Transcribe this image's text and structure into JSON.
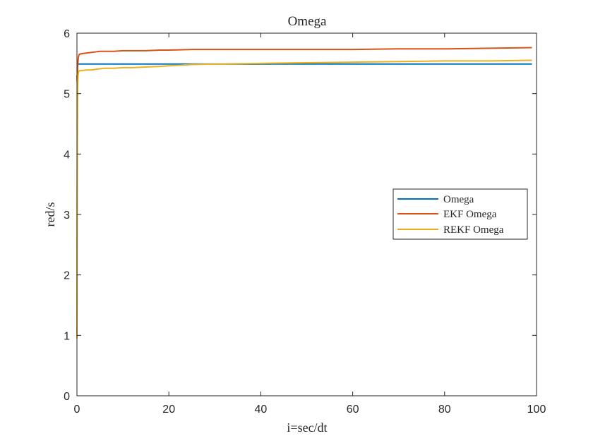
{
  "chart_data": {
    "type": "line",
    "title": "Omega",
    "xlabel": "i=sec/dt",
    "ylabel": "red/s",
    "xlim": [
      0,
      100
    ],
    "ylim": [
      0,
      6
    ],
    "xticks": [
      "0",
      "20",
      "40",
      "60",
      "80",
      "100"
    ],
    "yticks": [
      "0",
      "1",
      "2",
      "3",
      "4",
      "5",
      "6"
    ],
    "grid": false,
    "legend_position": "right",
    "series": [
      {
        "name": "Omega",
        "color": "#0072BD",
        "x": [
          0,
          0.2,
          10,
          30,
          50,
          70,
          99
        ],
        "y": [
          5.49,
          5.49,
          5.49,
          5.49,
          5.49,
          5.49,
          5.49
        ]
      },
      {
        "name": "EKF Omega",
        "color": "#D95319",
        "x": [
          0,
          0.05,
          0.15,
          0.3,
          0.5,
          1,
          2,
          3,
          4,
          5,
          6,
          8,
          10,
          12,
          15,
          18,
          20,
          25,
          30,
          40,
          50,
          60,
          70,
          80,
          90,
          99
        ],
        "y": [
          5.3,
          5.2,
          5.45,
          5.6,
          5.65,
          5.66,
          5.67,
          5.68,
          5.69,
          5.7,
          5.7,
          5.7,
          5.71,
          5.71,
          5.71,
          5.72,
          5.72,
          5.73,
          5.73,
          5.73,
          5.73,
          5.73,
          5.74,
          5.74,
          5.75,
          5.76
        ]
      },
      {
        "name": "REKF Omega",
        "color": "#EDB120",
        "x": [
          0,
          0.03,
          0.08,
          0.15,
          0.25,
          0.4,
          0.6,
          1,
          2,
          3,
          4,
          5,
          6,
          8,
          10,
          12,
          15,
          18,
          20,
          25,
          30,
          40,
          50,
          60,
          70,
          80,
          90,
          99
        ],
        "y": [
          0.95,
          2.5,
          4.2,
          5.1,
          5.3,
          5.37,
          5.38,
          5.38,
          5.39,
          5.39,
          5.4,
          5.41,
          5.42,
          5.42,
          5.43,
          5.43,
          5.44,
          5.45,
          5.46,
          5.48,
          5.49,
          5.5,
          5.51,
          5.52,
          5.53,
          5.54,
          5.54,
          5.55
        ]
      }
    ]
  }
}
